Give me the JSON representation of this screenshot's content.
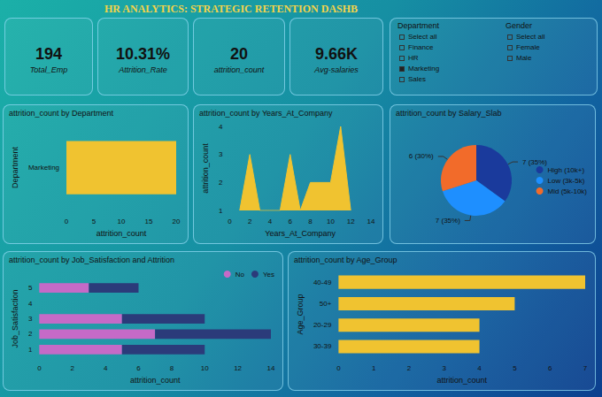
{
  "header": {
    "title": "HR ANALYTICS: STRATEGIC RETENTION DASHB"
  },
  "cards": [
    {
      "value": "194",
      "label": "Total_Emp"
    },
    {
      "value": "10.31%",
      "label": "Attrition_Rate"
    },
    {
      "value": "20",
      "label": "attrition_count"
    },
    {
      "value": "9.66K",
      "label": "Avg-salaries"
    }
  ],
  "slicers": [
    {
      "title": "Department",
      "items": [
        "Select all",
        "Finance",
        "HR",
        "Marketing",
        "Sales"
      ],
      "selected": [
        "Marketing"
      ]
    },
    {
      "title": "Gender",
      "items": [
        "Select all",
        "Female",
        "Male"
      ],
      "selected": []
    }
  ],
  "chart_data": [
    {
      "type": "bar",
      "title": "attrition_count by Department",
      "orientation": "horizontal",
      "categories": [
        "Marketing"
      ],
      "values": [
        20
      ],
      "color": "#f0c330",
      "xlim": [
        0,
        20
      ],
      "xticks": [
        0,
        5,
        10,
        15,
        20
      ],
      "xlabel": "attrition_count",
      "ylabel": "Department",
      "grid": false
    },
    {
      "type": "area",
      "title": "attrition_count by Years_At_Company",
      "x": [
        1,
        2,
        3,
        4,
        5,
        6,
        7,
        8,
        10,
        11,
        12
      ],
      "values": [
        1,
        3,
        1,
        1,
        1,
        3,
        1,
        2,
        2,
        4,
        1
      ],
      "color": "#f0c330",
      "xlim": [
        0,
        14
      ],
      "xticks": [
        0,
        2,
        4,
        6,
        8,
        10,
        12,
        14
      ],
      "ylim": [
        1,
        4
      ],
      "yticks": [
        1,
        2,
        3,
        4
      ],
      "xlabel": "Years_At_Company",
      "ylabel": "attrition_count",
      "grid": false
    },
    {
      "type": "pie",
      "title": "attrition_count by Salary_Slab",
      "categories": [
        "High (10k+)",
        "Low (3k-5k)",
        "Mid (5k-10k)"
      ],
      "values": [
        7,
        7,
        6
      ],
      "value_labels": [
        "7 (35%)",
        "7 (35%)",
        "6 (30%)"
      ],
      "colors": [
        "#1a3a9c",
        "#1e8fff",
        "#f26b2a"
      ],
      "data_labels": true,
      "legend": "right"
    },
    {
      "type": "bar",
      "title": "attrition_count by Job_Satisfaction and Attrition",
      "orientation": "horizontal",
      "stacked": true,
      "categories": [
        "1",
        "2",
        "3",
        "4",
        "5"
      ],
      "series": [
        {
          "name": "No",
          "color": "#c56ac7",
          "values": [
            5,
            7,
            5,
            null,
            3
          ]
        },
        {
          "name": "Yes",
          "color": "#2b3b7a",
          "values": [
            5,
            7,
            5,
            null,
            3
          ]
        }
      ],
      "xlim": [
        0,
        14
      ],
      "xticks": [
        0,
        2,
        4,
        6,
        8,
        10,
        12,
        14
      ],
      "xlabel": "attrition_count",
      "ylabel": "Job_Satisfaction",
      "legend": "top-right",
      "grid": false
    },
    {
      "type": "bar",
      "title": "attrition_count by Age_Group",
      "orientation": "horizontal",
      "categories": [
        "40-49",
        "50+",
        "20-29",
        "30-39"
      ],
      "values": [
        7,
        5,
        4,
        4
      ],
      "color": "#f0c330",
      "xlim": [
        0,
        7
      ],
      "xticks": [
        0,
        1,
        2,
        3,
        4,
        5,
        6,
        7
      ],
      "xlabel": "attrition_count",
      "ylabel": "Age_Group",
      "grid": false
    }
  ]
}
